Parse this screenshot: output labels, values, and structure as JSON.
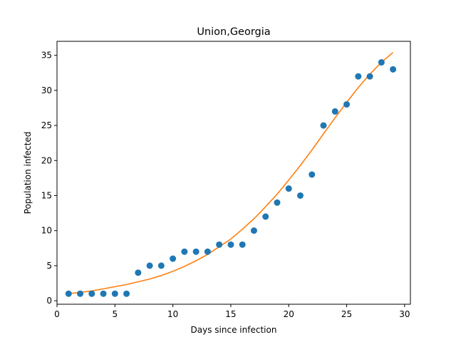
{
  "chart_data": {
    "type": "scatter",
    "title": "Union,Georgia",
    "xlabel": "Days since infection",
    "ylabel": "Population infected",
    "xlim": [
      0,
      30.5
    ],
    "ylim": [
      -0.5,
      37
    ],
    "xticks": [
      0,
      5,
      10,
      15,
      20,
      25,
      30
    ],
    "yticks": [
      0,
      5,
      10,
      15,
      20,
      25,
      30,
      35
    ],
    "grid": false,
    "series": [
      {
        "kind": "scatter",
        "color": "#1f77b4",
        "x": [
          1,
          2,
          3,
          4,
          5,
          6,
          7,
          8,
          9,
          10,
          11,
          12,
          13,
          14,
          15,
          16,
          17,
          18,
          19,
          20,
          21,
          22,
          23,
          24,
          25,
          26,
          27,
          28,
          29
        ],
        "y": [
          1,
          1,
          1,
          1,
          1,
          1,
          4,
          5,
          5,
          6,
          7,
          7,
          7,
          8,
          8,
          8,
          10,
          12,
          14,
          16,
          15,
          18,
          25,
          27,
          28,
          32,
          32,
          34,
          33
        ]
      },
      {
        "kind": "line",
        "color": "#ff7f0e",
        "x": [
          1,
          2,
          3,
          4,
          5,
          6,
          7,
          8,
          9,
          10,
          11,
          12,
          13,
          14,
          15,
          16,
          17,
          18,
          19,
          20,
          21,
          22,
          23,
          24,
          25,
          26,
          27,
          28,
          29
        ],
        "y": [
          1.0,
          1.2,
          1.4,
          1.7,
          2.0,
          2.3,
          2.7,
          3.1,
          3.6,
          4.2,
          4.9,
          5.7,
          6.6,
          7.7,
          8.8,
          10.2,
          11.7,
          13.4,
          15.2,
          17.2,
          19.3,
          21.5,
          23.8,
          26.1,
          28.3,
          30.4,
          32.3,
          34.0,
          35.4
        ]
      }
    ]
  }
}
